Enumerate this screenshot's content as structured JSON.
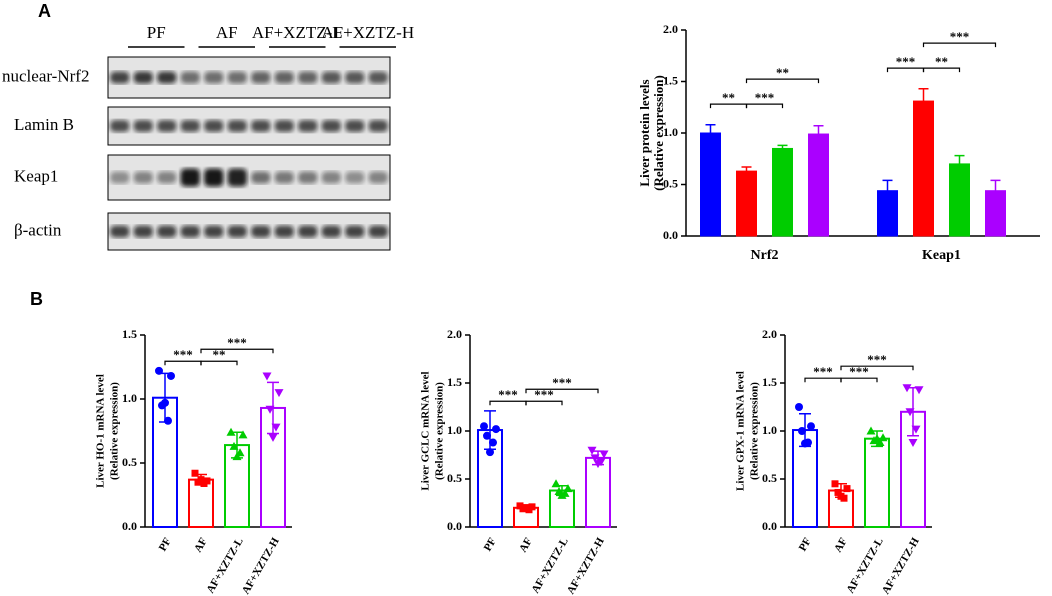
{
  "panels": [
    "A",
    "B"
  ],
  "blot": {
    "groups": [
      "PF",
      "AF",
      "AF+XZTZ-L",
      "AF+XZTZ-H"
    ],
    "rows": [
      "nuclear-Nrf2",
      "Lamin B",
      "Keap1",
      "β-actin"
    ]
  },
  "chart_data": [
    {
      "type": "grouped_bar",
      "ylabel": "Liver protein levels",
      "ylabel2": "(Relative expression)",
      "categories": [
        "Nrf2",
        "Keap1"
      ],
      "series": [
        {
          "color": "#0000ff",
          "values": [
            1.0,
            0.44
          ],
          "errors": [
            0.08,
            0.1
          ]
        },
        {
          "color": "#ff0000",
          "values": [
            0.63,
            1.31
          ],
          "errors": [
            0.04,
            0.12
          ]
        },
        {
          "color": "#00cc00",
          "values": [
            0.85,
            0.7
          ],
          "errors": [
            0.03,
            0.08
          ]
        },
        {
          "color": "#aa00ff",
          "values": [
            0.99,
            0.44
          ],
          "errors": [
            0.08,
            0.1
          ]
        }
      ],
      "significance": [
        [
          "**",
          "***",
          "**"
        ],
        [
          "***",
          "**",
          "***"
        ]
      ],
      "ylim": [
        0,
        2
      ],
      "yticks": [
        {
          "value": 0,
          "label": "0.0"
        },
        0.5,
        {
          "value": 1,
          "label": "1.0"
        },
        1.5,
        {
          "value": 2,
          "label": "2.0"
        }
      ]
    },
    {
      "type": "dot_bar",
      "ylabel": "Liver HO-1 mRNA level",
      "ylabel2": "(Relative expression)",
      "categories": [
        "PF",
        "AF",
        "AF+XZTZ-L",
        "AF+XZTZ-H"
      ],
      "colors": [
        "#0000ff",
        "#ff0000",
        "#00cc00",
        "#aa00ff"
      ],
      "values": [
        1.01,
        0.37,
        0.64,
        0.93
      ],
      "errors": [
        0.19,
        0.04,
        0.1,
        0.2
      ],
      "points": [
        [
          1.22,
          1.18,
          0.95,
          0.83,
          0.97
        ],
        [
          0.42,
          0.36,
          0.35,
          0.34,
          0.37
        ],
        [
          0.74,
          0.72,
          0.63,
          0.58,
          0.55
        ],
        [
          1.18,
          1.05,
          0.92,
          0.78,
          0.7
        ]
      ],
      "significance": [
        "***",
        "**",
        "***"
      ],
      "ylim": [
        0,
        1.5
      ],
      "yticks": [
        {
          "value": 0,
          "label": "0.0"
        },
        0.5,
        {
          "value": 1,
          "label": "1.0"
        },
        1.5
      ]
    },
    {
      "type": "dot_bar",
      "ylabel": "Liver GCLC mRNA level",
      "ylabel2": "(Relative expression)",
      "categories": [
        "PF",
        "AF",
        "AF+XZTZ-L",
        "AF+XZTZ-H"
      ],
      "colors": [
        "#0000ff",
        "#ff0000",
        "#00cc00",
        "#aa00ff"
      ],
      "values": [
        1.01,
        0.2,
        0.38,
        0.72
      ],
      "errors": [
        0.2,
        0.03,
        0.05,
        0.07
      ],
      "points": [
        [
          1.05,
          1.02,
          0.95,
          0.88,
          0.78
        ],
        [
          0.22,
          0.21,
          0.19,
          0.18,
          0.2
        ],
        [
          0.45,
          0.4,
          0.37,
          0.35,
          0.33
        ],
        [
          0.8,
          0.76,
          0.72,
          0.68,
          0.66
        ]
      ],
      "significance": [
        "***",
        "***",
        "***"
      ],
      "ylim": [
        0,
        2
      ],
      "yticks": [
        {
          "value": 0,
          "label": "0.0"
        },
        0.5,
        {
          "value": 1,
          "label": "1.0"
        },
        1.5,
        {
          "value": 2,
          "label": "2.0"
        }
      ]
    },
    {
      "type": "dot_bar",
      "ylabel": "Liver GPX-1 mRNA level",
      "ylabel2": "(Relative expression)",
      "categories": [
        "PF",
        "AF",
        "AF+XZTZ-L",
        "AF+XZTZ-H"
      ],
      "colors": [
        "#0000ff",
        "#ff0000",
        "#00cc00",
        "#aa00ff"
      ],
      "values": [
        1.01,
        0.38,
        0.92,
        1.2
      ],
      "errors": [
        0.17,
        0.07,
        0.08,
        0.25
      ],
      "points": [
        [
          1.25,
          1.05,
          1.0,
          0.88,
          0.87
        ],
        [
          0.45,
          0.4,
          0.36,
          0.3,
          0.32
        ],
        [
          1.0,
          0.93,
          0.9,
          0.88,
          0.92
        ],
        [
          1.45,
          1.43,
          1.2,
          1.02,
          0.88
        ]
      ],
      "significance": [
        "***",
        "***",
        "***"
      ],
      "ylim": [
        0,
        2
      ],
      "yticks": [
        {
          "value": 0,
          "label": "0.0"
        },
        0.5,
        {
          "value": 1,
          "label": "1.0"
        },
        1.5,
        {
          "value": 2,
          "label": "2.0"
        }
      ]
    }
  ]
}
